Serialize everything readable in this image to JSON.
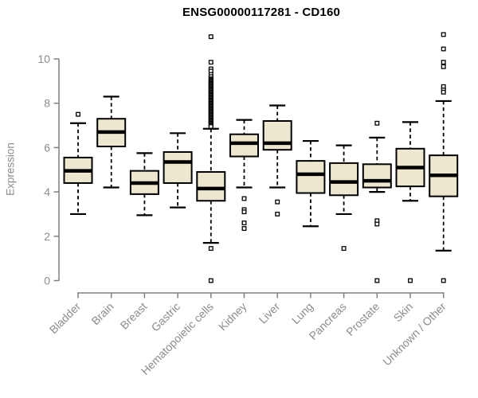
{
  "chart_data": {
    "type": "boxplot",
    "title": "ENSG00000117281 - CD160",
    "ylabel": "Expression",
    "xlabel": "",
    "yticks": [
      0,
      2,
      4,
      6,
      8,
      10
    ],
    "ylim": [
      0,
      11.2
    ],
    "grid": false,
    "legend": "none",
    "categories": [
      "Bladder",
      "Brain",
      "Breast",
      "Gastric",
      "Hematopoietic cells",
      "Kidney",
      "Liver",
      "Lung",
      "Pancreas",
      "Prostate",
      "Skin",
      "Unknown / Other"
    ],
    "boxes": [
      {
        "category": "Bladder",
        "low": 3.0,
        "q1": 4.4,
        "median": 4.95,
        "q3": 5.55,
        "high": 7.1,
        "outliers": [
          7.5
        ]
      },
      {
        "category": "Brain",
        "low": 4.2,
        "q1": 6.05,
        "median": 6.7,
        "q3": 7.3,
        "high": 8.3,
        "outliers": []
      },
      {
        "category": "Breast",
        "low": 2.95,
        "q1": 3.9,
        "median": 4.4,
        "q3": 4.95,
        "high": 5.75,
        "outliers": []
      },
      {
        "category": "Gastric",
        "low": 3.3,
        "q1": 4.4,
        "median": 5.35,
        "q3": 5.8,
        "high": 6.65,
        "outliers": []
      },
      {
        "category": "Hematopoietic cells",
        "low": 1.7,
        "q1": 3.6,
        "median": 4.15,
        "q3": 4.9,
        "high": 6.85,
        "outliers": [
          11.0,
          9.85,
          9.55,
          9.45,
          9.3,
          9.2,
          9.1,
          9.05,
          9.0,
          8.95,
          8.9,
          8.85,
          8.8,
          8.75,
          8.7,
          8.65,
          8.6,
          8.55,
          8.5,
          8.45,
          8.4,
          8.35,
          8.3,
          8.25,
          8.2,
          8.15,
          8.1,
          8.05,
          8.0,
          7.95,
          7.9,
          7.85,
          7.8,
          7.75,
          7.7,
          7.65,
          7.6,
          7.55,
          7.5,
          7.45,
          7.4,
          7.35,
          7.3,
          7.25,
          7.2,
          7.15,
          7.1,
          7.05,
          7.0,
          6.95,
          1.45,
          0.0
        ]
      },
      {
        "category": "Kidney",
        "low": 4.2,
        "q1": 5.6,
        "median": 6.2,
        "q3": 6.6,
        "high": 7.25,
        "outliers": [
          3.7,
          3.2,
          3.1,
          2.6,
          2.35
        ]
      },
      {
        "category": "Liver",
        "low": 4.2,
        "q1": 5.9,
        "median": 6.2,
        "q3": 7.2,
        "high": 7.9,
        "outliers": [
          3.55,
          3.0
        ]
      },
      {
        "category": "Lung",
        "low": 2.45,
        "q1": 3.95,
        "median": 4.8,
        "q3": 5.4,
        "high": 6.3,
        "outliers": []
      },
      {
        "category": "Pancreas",
        "low": 3.0,
        "q1": 3.85,
        "median": 4.45,
        "q3": 5.3,
        "high": 6.1,
        "outliers": [
          1.45
        ]
      },
      {
        "category": "Prostate",
        "low": 4.0,
        "q1": 4.2,
        "median": 4.5,
        "q3": 5.25,
        "high": 6.45,
        "outliers": [
          7.1,
          2.7,
          2.55,
          0.0
        ]
      },
      {
        "category": "Skin",
        "low": 3.6,
        "q1": 4.25,
        "median": 5.1,
        "q3": 5.95,
        "high": 7.15,
        "outliers": [
          0.0
        ]
      },
      {
        "category": "Unknown / Other",
        "low": 1.35,
        "q1": 3.8,
        "median": 4.75,
        "q3": 5.65,
        "high": 8.1,
        "outliers": [
          11.1,
          10.45,
          9.85,
          9.65,
          8.75,
          8.6,
          8.5,
          0.0
        ]
      }
    ],
    "colors": {
      "box_fill": "#ECE7CE",
      "box_stroke": "#000000",
      "median": "#000000",
      "axis": "#7f7f7f",
      "tick_label": "#8c8c8c",
      "title": "#000000",
      "background": "#ffffff"
    }
  }
}
